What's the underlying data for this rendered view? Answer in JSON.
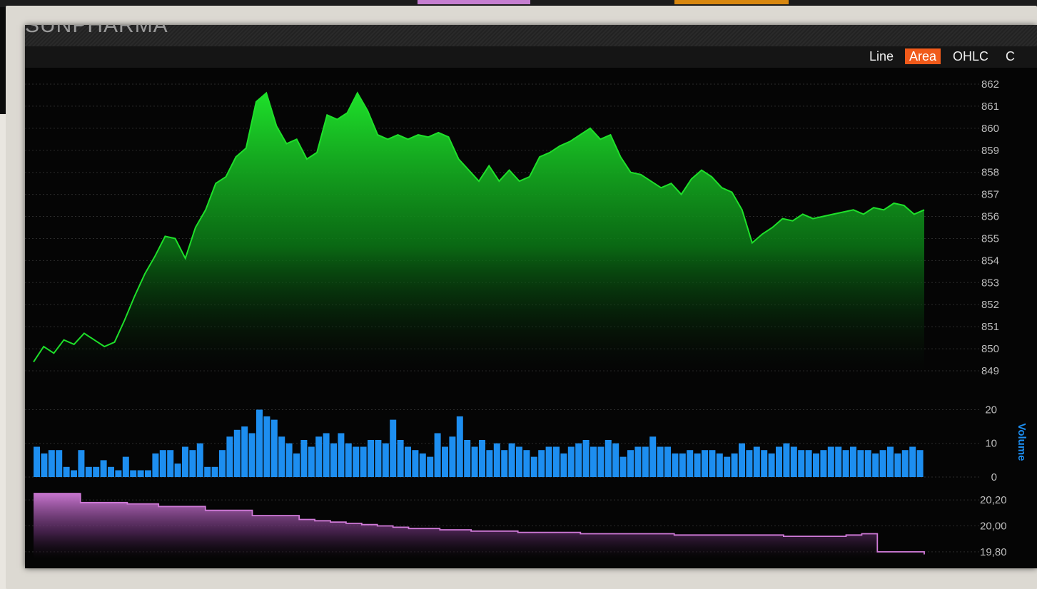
{
  "header": {
    "accent_colors": [
      "#c57ed0",
      "#d8870f"
    ]
  },
  "chart_panel": {
    "title": "SUNPHARMA",
    "chart_types": [
      {
        "label": "Line",
        "active": false
      },
      {
        "label": "Area",
        "active": true
      },
      {
        "label": "OHLC",
        "active": false
      },
      {
        "label": "C",
        "active": false
      }
    ],
    "colors": {
      "price": "#1ee02a",
      "volume": "#1d8ef0",
      "indicator": "#d07ad8",
      "active_tab": "#f05a1a"
    }
  },
  "chart_data": [
    {
      "type": "area",
      "series": [
        {
          "values": [
            849.4,
            850.1,
            849.8,
            850.4,
            850.2,
            850.7,
            850.4,
            850.1,
            850.3,
            851.3,
            852.4,
            853.4,
            854.2,
            855.1,
            855.0,
            854.1,
            855.5,
            856.3,
            857.5,
            857.8,
            858.7,
            859.1,
            861.2,
            861.6,
            860.1,
            859.3,
            859.5,
            858.6,
            858.9,
            860.6,
            860.4,
            860.7,
            861.6,
            860.8,
            859.7,
            859.5,
            859.7,
            859.5,
            859.7,
            859.6,
            859.8,
            859.6,
            858.6,
            858.1,
            857.6,
            858.3,
            857.6,
            858.1,
            857.6,
            857.8,
            858.7,
            858.9,
            859.2,
            859.4,
            859.7,
            860.0,
            859.5,
            859.7,
            858.7,
            858.0,
            857.9,
            857.6,
            857.3,
            857.5,
            857.0,
            857.7,
            858.1,
            857.8,
            857.3,
            857.1,
            856.3,
            854.8,
            855.2,
            855.5,
            855.9,
            855.8,
            856.1,
            855.9,
            856.0,
            856.1,
            856.2,
            856.3,
            856.1,
            856.4,
            856.3,
            856.6,
            856.5,
            856.1,
            856.3
          ]
        }
      ],
      "y_ticks": [
        "862",
        "861",
        "860",
        "859",
        "858",
        "857",
        "856",
        "855",
        "854",
        "853",
        "852",
        "851",
        "850",
        "849"
      ],
      "ylim": [
        849,
        862
      ]
    },
    {
      "type": "bar",
      "ylabel": "Volume",
      "y_ticks": [
        "20",
        "10",
        "0"
      ],
      "ylim": [
        0,
        22
      ],
      "series": [
        {
          "values": [
            9,
            7,
            8,
            8,
            3,
            2,
            8,
            3,
            3,
            5,
            3,
            2,
            6,
            2,
            2,
            2,
            7,
            8,
            8,
            4,
            9,
            8,
            10,
            3,
            3,
            8,
            12,
            14,
            15,
            13,
            20,
            18,
            17,
            12,
            10,
            7,
            11,
            9,
            12,
            13,
            10,
            13,
            10,
            9,
            9,
            11,
            11,
            10,
            17,
            11,
            9,
            8,
            7,
            6,
            13,
            9,
            12,
            18,
            11,
            9,
            11,
            8,
            10,
            8,
            10,
            9,
            8,
            6,
            8,
            9,
            9,
            7,
            9,
            10,
            11,
            9,
            9,
            11,
            10,
            6,
            8,
            9,
            9,
            12,
            9,
            9,
            7,
            7,
            8,
            7,
            8,
            8,
            7,
            6,
            7,
            10,
            8,
            9,
            8,
            7,
            9,
            10,
            9,
            8,
            8,
            7,
            8,
            9,
            9,
            8,
            9,
            8,
            8,
            7,
            8,
            9,
            7,
            8,
            9,
            8
          ]
        }
      ]
    },
    {
      "type": "area",
      "y_ticks": [
        "20,20",
        "20,00",
        "19,80"
      ],
      "ylim": [
        19750,
        20300
      ],
      "series": [
        {
          "values": [
            20250,
            20250,
            20250,
            20180,
            20180,
            20180,
            20170,
            20170,
            20150,
            20150,
            20150,
            20120,
            20120,
            20120,
            20080,
            20080,
            20080,
            20050,
            20040,
            20030,
            20020,
            20010,
            20000,
            19990,
            19980,
            19980,
            19970,
            19970,
            19960,
            19960,
            19960,
            19950,
            19950,
            19950,
            19950,
            19940,
            19940,
            19940,
            19940,
            19940,
            19940,
            19930,
            19930,
            19930,
            19930,
            19930,
            19930,
            19930,
            19920,
            19920,
            19920,
            19920,
            19930,
            19940,
            19800,
            19800,
            19800,
            19780
          ]
        }
      ]
    }
  ]
}
